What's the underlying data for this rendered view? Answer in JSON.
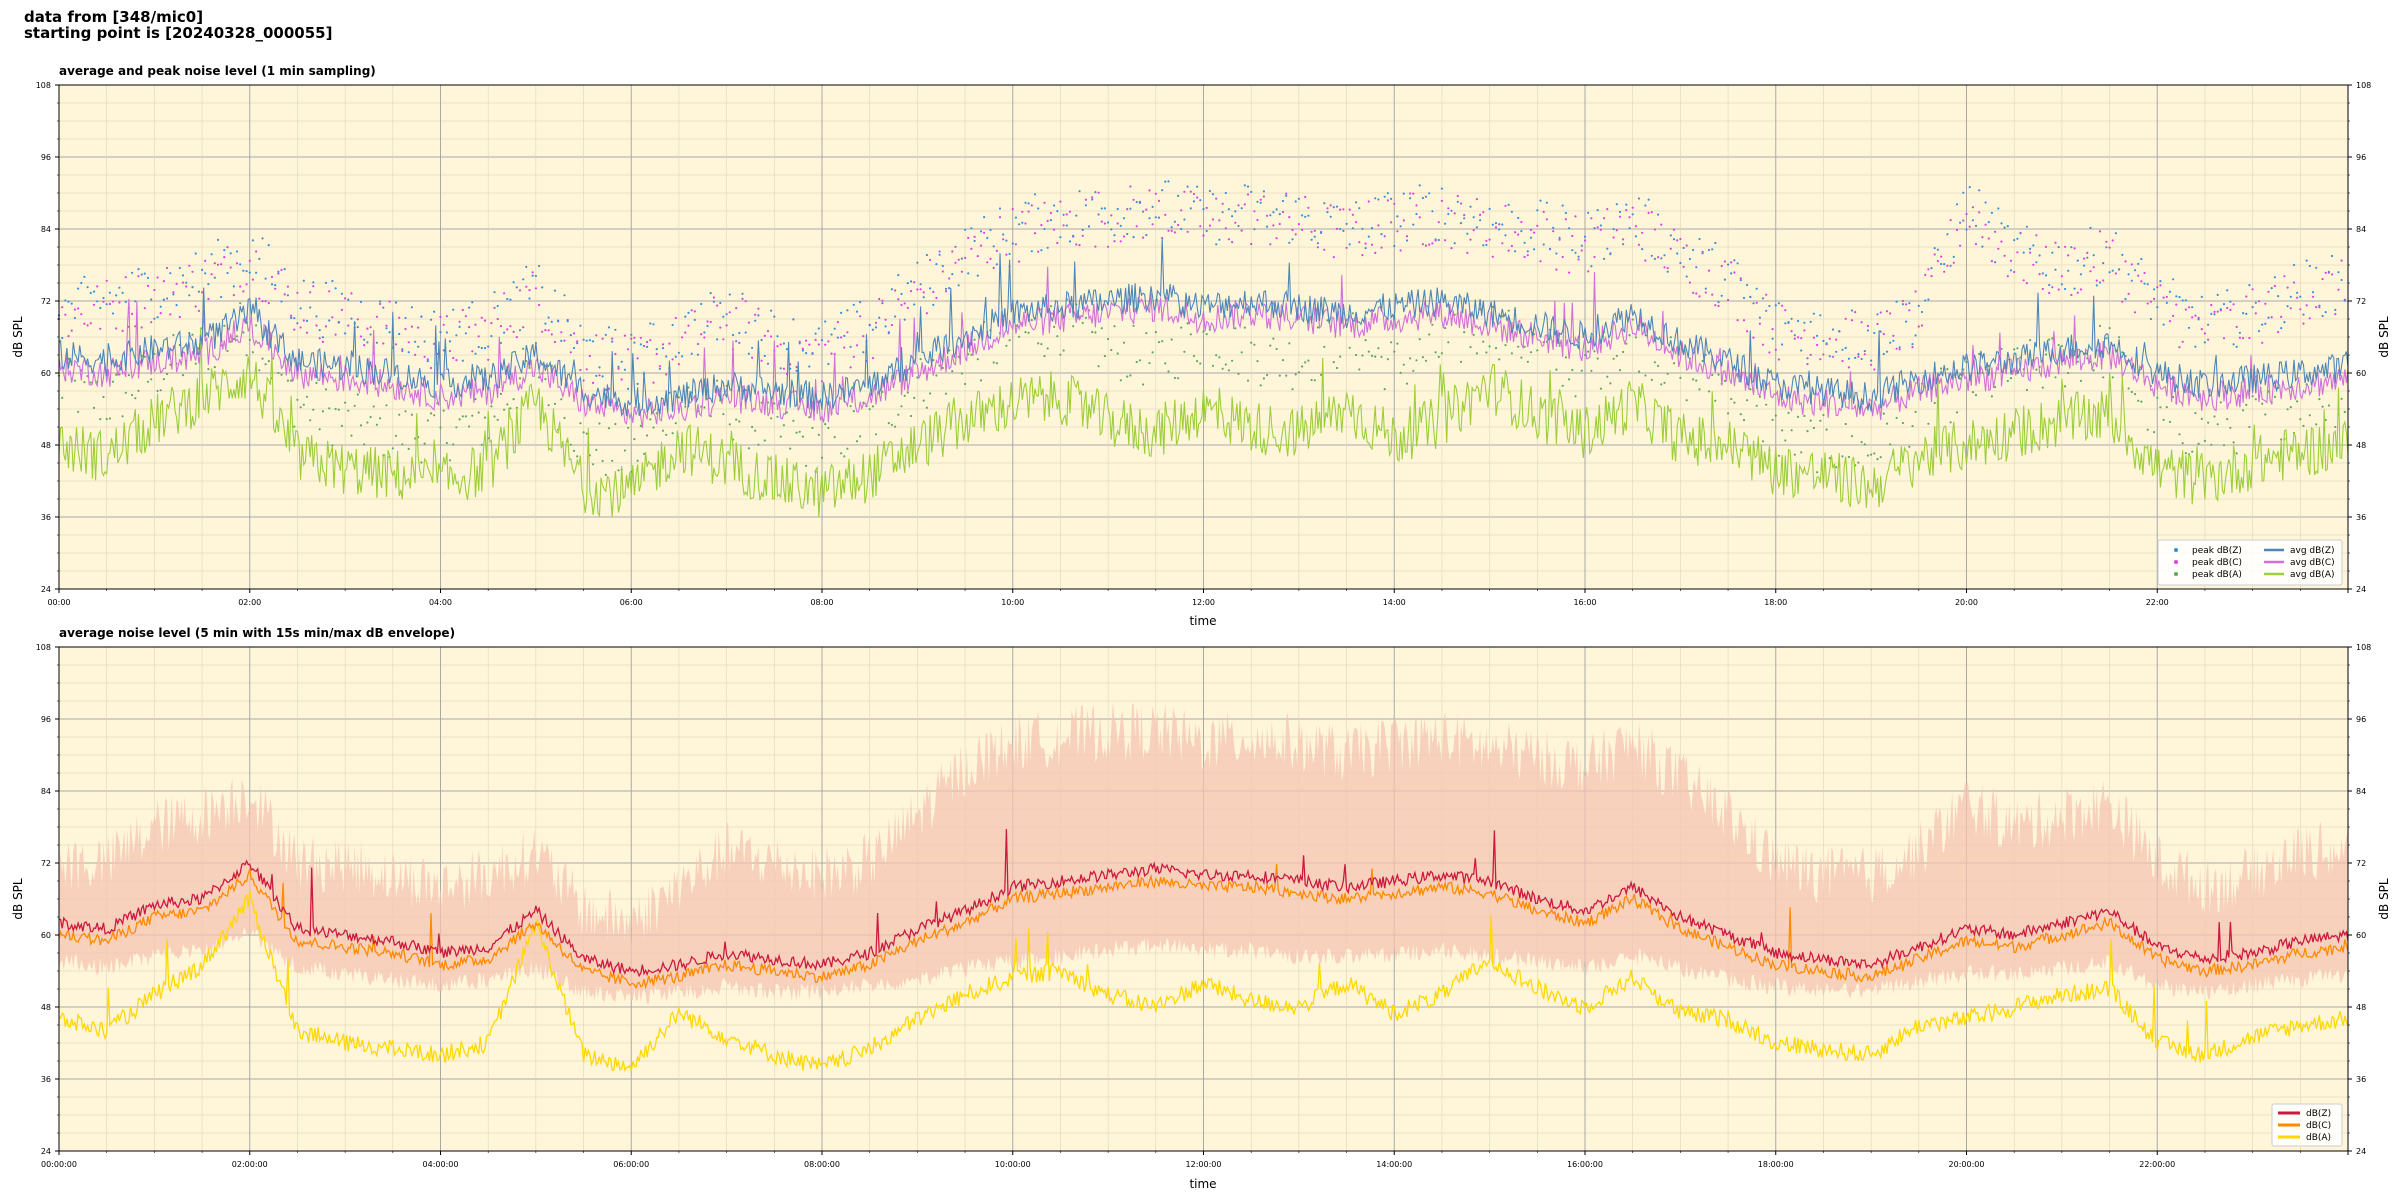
{
  "header": {
    "line1": "data from [348/mic0]",
    "line2": "starting point is [20240328_000055]"
  },
  "colors": {
    "plot_bg": "#fff6da",
    "peak_z": "#3b8fd9",
    "peak_c": "#e040e0",
    "peak_a": "#5ea85e",
    "avg_z": "#4f86b8",
    "avg_c": "#d070d8",
    "avg_a": "#9cce3a",
    "dbz": "#cc1a3f",
    "dbc": "#ff8a00",
    "dba": "#ffd800",
    "envelope": "#f4c4b2"
  },
  "chart_data": [
    {
      "type": "line",
      "title": "average and peak noise level (1 min sampling)",
      "xlabel": "time",
      "ylabel": "dB SPL",
      "ylim": [
        24,
        108
      ],
      "xlim_hours": [
        0,
        24
      ],
      "yticks": [
        24,
        36,
        48,
        60,
        72,
        84,
        96,
        108
      ],
      "xtick_labels": [
        "00:00",
        "02:00",
        "04:00",
        "06:00",
        "08:00",
        "10:00",
        "12:00",
        "14:00",
        "16:00",
        "18:00",
        "20:00",
        "22:00"
      ],
      "grid": true,
      "legend_position": "lower-right",
      "legend": [
        "peak dB(Z)",
        "peak dB(C)",
        "peak dB(A)",
        "avg dB(Z)",
        "avg dB(C)",
        "avg dB(A)"
      ],
      "x_hours": [
        0,
        0.5,
        1,
        1.5,
        2,
        2.5,
        3,
        3.5,
        4,
        4.5,
        5,
        5.5,
        6,
        6.5,
        7,
        7.5,
        8,
        8.5,
        9,
        9.5,
        10,
        10.5,
        11,
        11.5,
        12,
        12.5,
        13,
        13.5,
        14,
        14.5,
        15,
        15.5,
        16,
        16.5,
        17,
        17.5,
        18,
        18.5,
        19,
        19.5,
        20,
        20.5,
        21,
        21.5,
        22,
        22.5,
        23,
        23.5,
        24
      ],
      "series": [
        {
          "name": "avg dB(Z)",
          "values": [
            63,
            62,
            64,
            65,
            70,
            62,
            61,
            60,
            58,
            59,
            63,
            57,
            55,
            56,
            58,
            57,
            56,
            58,
            62,
            66,
            70,
            71,
            72,
            73,
            71,
            72,
            71,
            70,
            71,
            72,
            70,
            68,
            66,
            70,
            65,
            62,
            58,
            57,
            56,
            59,
            61,
            62,
            64,
            65,
            60,
            58,
            59,
            60,
            61
          ]
        },
        {
          "name": "avg dB(C)",
          "values": [
            61,
            60,
            62,
            63,
            68,
            60,
            59,
            58,
            56,
            57,
            61,
            55,
            53,
            54,
            56,
            55,
            54,
            56,
            60,
            64,
            68,
            69,
            70,
            71,
            69,
            70,
            69,
            68,
            69,
            70,
            68,
            66,
            64,
            68,
            63,
            60,
            56,
            55,
            54,
            57,
            59,
            60,
            62,
            63,
            58,
            56,
            57,
            58,
            59
          ]
        },
        {
          "name": "avg dB(A)",
          "values": [
            48,
            46,
            52,
            56,
            60,
            46,
            44,
            43,
            42,
            44,
            55,
            41,
            40,
            48,
            45,
            42,
            40,
            43,
            48,
            52,
            55,
            56,
            52,
            50,
            54,
            51,
            50,
            54,
            49,
            52,
            58,
            53,
            50,
            55,
            49,
            48,
            44,
            43,
            41,
            46,
            48,
            50,
            52,
            53,
            44,
            42,
            45,
            47,
            48
          ]
        },
        {
          "name": "peak dB(Z)",
          "values": [
            70,
            72,
            74,
            76,
            80,
            72,
            70,
            68,
            66,
            68,
            74,
            64,
            62,
            66,
            70,
            66,
            64,
            68,
            74,
            80,
            84,
            86,
            87,
            88,
            86,
            87,
            86,
            84,
            86,
            87,
            85,
            84,
            82,
            86,
            80,
            76,
            68,
            67,
            66,
            70,
            88,
            80,
            78,
            80,
            72,
            68,
            70,
            74,
            75
          ]
        },
        {
          "name": "peak dB(C)",
          "values": [
            69,
            71,
            73,
            75,
            79,
            71,
            69,
            67,
            65,
            67,
            73,
            63,
            61,
            65,
            69,
            65,
            63,
            67,
            73,
            79,
            83,
            85,
            86,
            87,
            85,
            86,
            85,
            83,
            85,
            86,
            84,
            83,
            81,
            85,
            79,
            75,
            67,
            66,
            65,
            69,
            87,
            79,
            77,
            79,
            71,
            67,
            69,
            73,
            74
          ]
        },
        {
          "name": "peak dB(A)",
          "values": [
            58,
            55,
            60,
            64,
            68,
            55,
            52,
            50,
            50,
            52,
            62,
            48,
            46,
            56,
            54,
            50,
            48,
            52,
            58,
            62,
            66,
            68,
            64,
            62,
            66,
            63,
            62,
            66,
            61,
            64,
            68,
            64,
            60,
            66,
            60,
            58,
            50,
            48,
            47,
            54,
            58,
            60,
            62,
            64,
            52,
            50,
            52,
            55,
            56
          ]
        }
      ]
    },
    {
      "type": "line",
      "title": "average noise level (5 min with 15s min/max dB envelope)",
      "xlabel": "time",
      "ylabel": "dB SPL",
      "ylim": [
        24,
        108
      ],
      "xlim_hours": [
        0,
        24
      ],
      "yticks": [
        24,
        36,
        48,
        60,
        72,
        84,
        96,
        108
      ],
      "xtick_labels": [
        "00:00:00",
        "02:00:00",
        "04:00:00",
        "06:00:00",
        "08:00:00",
        "10:00:00",
        "12:00:00",
        "14:00:00",
        "16:00:00",
        "18:00:00",
        "20:00:00",
        "22:00:00"
      ],
      "grid": true,
      "legend_position": "lower-right",
      "legend": [
        "dB(Z)",
        "dB(C)",
        "dB(A)"
      ],
      "x_hours": [
        0,
        0.5,
        1,
        1.5,
        2,
        2.5,
        3,
        3.5,
        4,
        4.5,
        5,
        5.5,
        6,
        6.5,
        7,
        7.5,
        8,
        8.5,
        9,
        9.5,
        10,
        10.5,
        11,
        11.5,
        12,
        12.5,
        13,
        13.5,
        14,
        14.5,
        15,
        15.5,
        16,
        16.5,
        17,
        17.5,
        18,
        18.5,
        19,
        19.5,
        20,
        20.5,
        21,
        21.5,
        22,
        22.5,
        23,
        23.5,
        24
      ],
      "series": [
        {
          "name": "dB(Z)",
          "values": [
            62,
            61,
            65,
            66,
            72,
            61,
            60,
            59,
            57,
            58,
            64,
            56,
            54,
            55,
            57,
            56,
            55,
            57,
            61,
            64,
            68,
            69,
            70,
            71,
            70,
            70,
            69,
            68,
            69,
            70,
            69,
            66,
            64,
            68,
            63,
            60,
            57,
            56,
            55,
            58,
            61,
            60,
            62,
            64,
            58,
            56,
            57,
            59,
            60
          ]
        },
        {
          "name": "dB(C)",
          "values": [
            60,
            59,
            63,
            64,
            70,
            59,
            58,
            57,
            55,
            56,
            62,
            54,
            52,
            53,
            55,
            54,
            53,
            55,
            59,
            62,
            66,
            67,
            68,
            69,
            68,
            68,
            67,
            66,
            67,
            68,
            67,
            64,
            62,
            66,
            61,
            58,
            55,
            54,
            53,
            56,
            59,
            58,
            60,
            62,
            56,
            54,
            55,
            57,
            58
          ]
        },
        {
          "name": "dB(A)",
          "values": [
            46,
            44,
            50,
            55,
            66,
            44,
            42,
            41,
            40,
            42,
            62,
            40,
            38,
            47,
            43,
            40,
            38,
            41,
            46,
            50,
            53,
            54,
            50,
            48,
            52,
            49,
            48,
            52,
            47,
            50,
            56,
            51,
            48,
            53,
            47,
            46,
            42,
            41,
            40,
            45,
            46,
            48,
            50,
            51,
            42,
            40,
            43,
            45,
            46
          ]
        },
        {
          "name": "envelope max",
          "values": [
            70,
            70,
            76,
            78,
            82,
            70,
            70,
            68,
            66,
            68,
            72,
            62,
            60,
            66,
            72,
            70,
            68,
            70,
            78,
            86,
            90,
            91,
            92,
            92,
            90,
            91,
            90,
            88,
            90,
            91,
            89,
            88,
            86,
            90,
            84,
            78,
            70,
            68,
            68,
            72,
            80,
            76,
            78,
            80,
            70,
            66,
            68,
            72,
            72
          ]
        },
        {
          "name": "envelope min",
          "values": [
            57,
            56,
            58,
            59,
            62,
            56,
            55,
            54,
            53,
            54,
            56,
            52,
            51,
            52,
            53,
            52,
            52,
            53,
            54,
            56,
            57,
            58,
            59,
            60,
            59,
            59,
            58,
            58,
            58,
            59,
            58,
            57,
            56,
            58,
            56,
            54,
            53,
            52,
            52,
            54,
            55,
            55,
            56,
            57,
            53,
            52,
            53,
            54,
            55
          ]
        }
      ]
    }
  ]
}
